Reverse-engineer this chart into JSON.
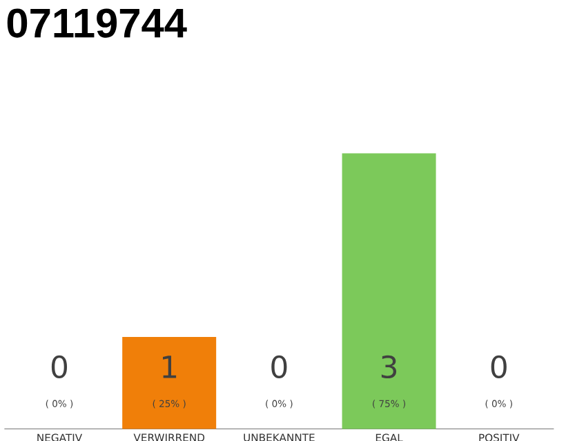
{
  "chart_data": {
    "type": "bar",
    "title": "07119744",
    "categories": [
      "NEGATIV",
      "VERWIRREND",
      "UNBEKANNTE",
      "EGAL",
      "POSITIV"
    ],
    "values": [
      0,
      25,
      0,
      75,
      0
    ],
    "colors": [
      "#f07f09",
      "#f07f09",
      "#f07f09",
      "#7cc95a",
      "#f07f09"
    ],
    "tick_labels": "x",
    "value_labels": [
      "( 0% )",
      "( 25% )",
      "( 0% )",
      "( 75% )",
      "( 0% )"
    ],
    "annotations": [
      "0",
      "1",
      "0",
      "3",
      "0"
    ]
  }
}
